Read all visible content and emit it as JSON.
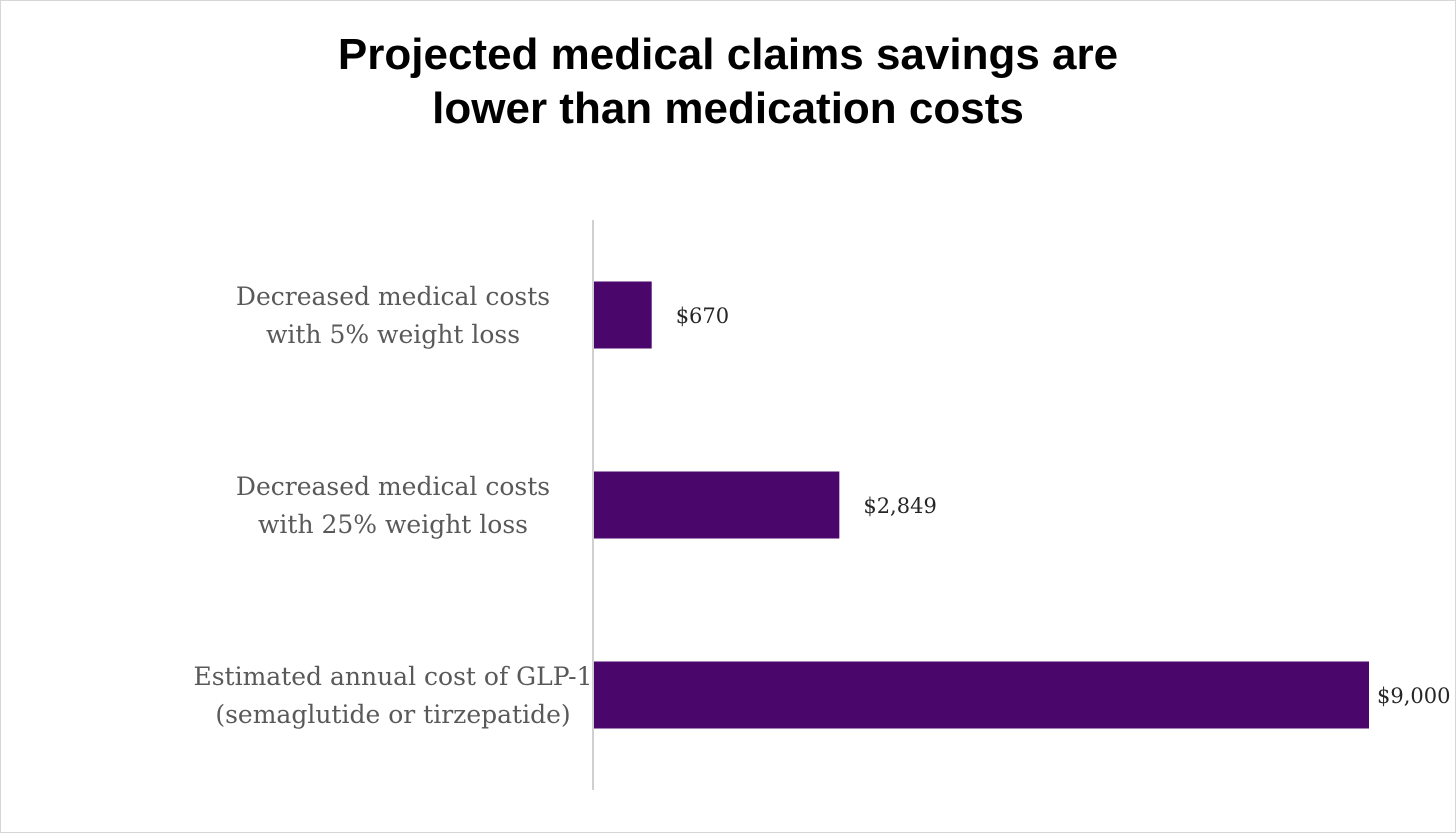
{
  "chart_data": {
    "type": "bar",
    "orientation": "horizontal",
    "title": "Projected medical claims savings are lower than medication costs",
    "title_lines": [
      "Projected medical claims savings are",
      "lower than medication costs"
    ],
    "categories": [
      {
        "lines": [
          "Decreased medical costs",
          "with 5% weight loss"
        ]
      },
      {
        "lines": [
          "Decreased medical costs",
          "with 25% weight loss"
        ]
      },
      {
        "lines": [
          "Estimated annual cost of GLP-1",
          "(semaglutide or tirzepatide)"
        ]
      }
    ],
    "values": [
      670,
      2849,
      9000
    ],
    "value_labels": [
      "$670",
      "$2,849",
      "$9,000"
    ],
    "xlim": [
      0,
      9000
    ],
    "grid": false,
    "legend": "none",
    "colors": {
      "bar": "#4a066b",
      "axis": "#d0d0d0"
    }
  }
}
